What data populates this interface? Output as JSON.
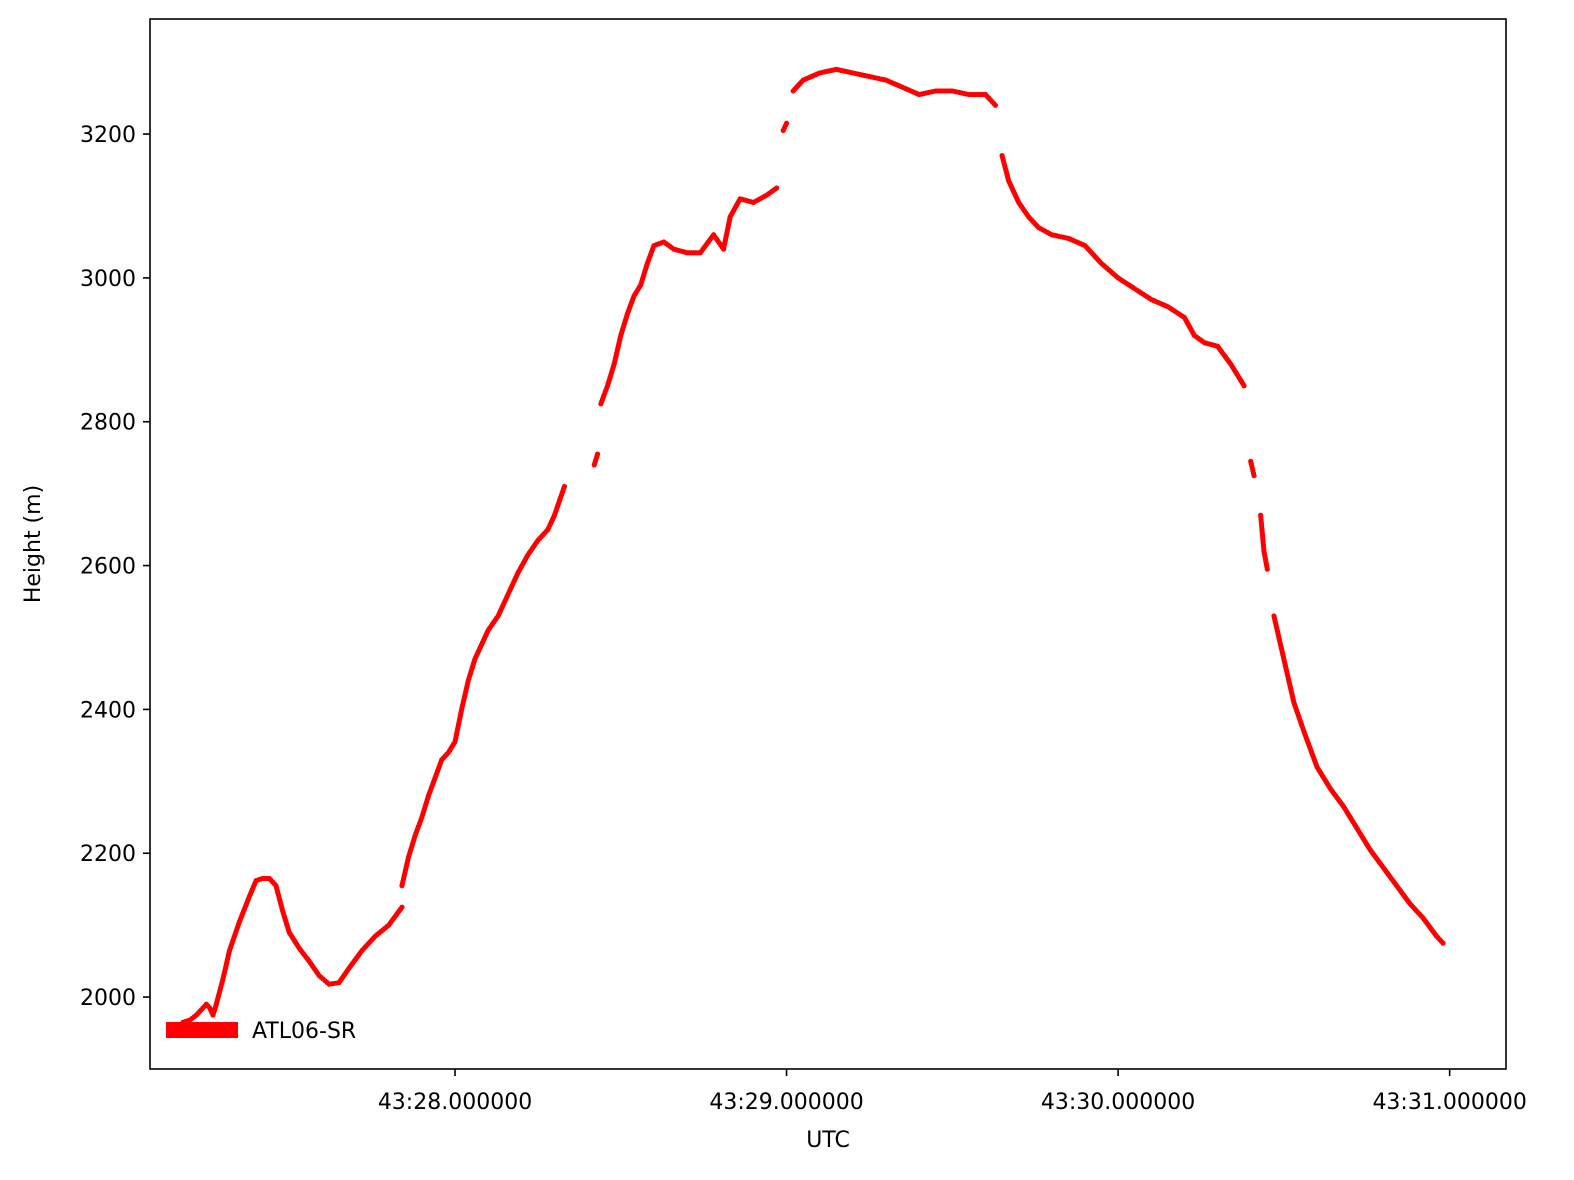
{
  "chart_data": {
    "type": "scatter",
    "title": "",
    "xlabel": "UTC",
    "ylabel": "Height (m)",
    "x_unit": "minutes:seconds UTC",
    "xlim": [
      "43:27.08",
      "43:31.17"
    ],
    "ylim": [
      1900,
      3360
    ],
    "x_ticks": [
      {
        "value": "43:28.000000",
        "label": "43:28.000000"
      },
      {
        "value": "43:29.000000",
        "label": "43:29.000000"
      },
      {
        "value": "43:30.000000",
        "label": "43:30.000000"
      },
      {
        "value": "43:31.000000",
        "label": "43:31.000000"
      }
    ],
    "y_ticks": [
      {
        "value": 2000,
        "label": "2000"
      },
      {
        "value": 2200,
        "label": "2200"
      },
      {
        "value": 2400,
        "label": "2400"
      },
      {
        "value": 2600,
        "label": "2600"
      },
      {
        "value": 2800,
        "label": "2800"
      },
      {
        "value": 3000,
        "label": "3000"
      },
      {
        "value": 3200,
        "label": "3200"
      }
    ],
    "grid": false,
    "legend_position": "lower-left",
    "series": [
      {
        "name": "ATL06-SR",
        "color": "#ff0000",
        "marker": "dot",
        "segments": [
          [
            [
              "43:27.18",
              1965
            ],
            [
              "43:27.20",
              1968
            ],
            [
              "43:27.22",
              1975
            ],
            [
              "43:27.24",
              1985
            ],
            [
              "43:27.25",
              1990
            ],
            [
              "43:27.26",
              1985
            ],
            [
              "43:27.27",
              1975
            ],
            [
              "43:27.28",
              1990
            ]
          ],
          [
            [
              "43:27.28",
              1990
            ],
            [
              "43:27.30",
              2025
            ],
            [
              "43:27.32",
              2065
            ],
            [
              "43:27.35",
              2105
            ],
            [
              "43:27.38",
              2140
            ],
            [
              "43:27.40",
              2162
            ],
            [
              "43:27.42",
              2165
            ],
            [
              "43:27.44",
              2165
            ],
            [
              "43:27.46",
              2155
            ],
            [
              "43:27.48",
              2120
            ],
            [
              "43:27.50",
              2090
            ],
            [
              "43:27.53",
              2068
            ],
            [
              "43:27.56",
              2050
            ],
            [
              "43:27.59",
              2030
            ],
            [
              "43:27.62",
              2018
            ],
            [
              "43:27.65",
              2020
            ],
            [
              "43:27.68",
              2040
            ],
            [
              "43:27.72",
              2065
            ],
            [
              "43:27.76",
              2085
            ],
            [
              "43:27.80",
              2100
            ],
            [
              "43:27.84",
              2125
            ]
          ],
          [
            [
              "43:27.84",
              2155
            ],
            [
              "43:27.86",
              2195
            ],
            [
              "43:27.88",
              2225
            ],
            [
              "43:27.90",
              2250
            ],
            [
              "43:27.92",
              2280
            ],
            [
              "43:27.94",
              2305
            ],
            [
              "43:27.96",
              2330
            ],
            [
              "43:27.98",
              2340
            ],
            [
              "43:28.00",
              2355
            ],
            [
              "43:28.02",
              2400
            ],
            [
              "43:28.04",
              2440
            ],
            [
              "43:28.06",
              2470
            ],
            [
              "43:28.08",
              2490
            ],
            [
              "43:28.10",
              2510
            ],
            [
              "43:28.13",
              2530
            ],
            [
              "43:28.16",
              2560
            ],
            [
              "43:28.19",
              2590
            ],
            [
              "43:28.22",
              2615
            ],
            [
              "43:28.25",
              2635
            ],
            [
              "43:28.28",
              2650
            ],
            [
              "43:28.30",
              2670
            ],
            [
              "43:28.33",
              2710
            ]
          ],
          [
            [
              "43:28.42",
              2740
            ],
            [
              "43:28.43",
              2755
            ]
          ],
          [
            [
              "43:28.44",
              2825
            ],
            [
              "43:28.46",
              2850
            ],
            [
              "43:28.48",
              2880
            ],
            [
              "43:28.50",
              2920
            ],
            [
              "43:28.52",
              2950
            ],
            [
              "43:28.54",
              2975
            ],
            [
              "43:28.56",
              2990
            ],
            [
              "43:28.58",
              3020
            ],
            [
              "43:28.60",
              3045
            ],
            [
              "43:28.63",
              3050
            ],
            [
              "43:28.66",
              3040
            ],
            [
              "43:28.70",
              3035
            ],
            [
              "43:28.74",
              3035
            ],
            [
              "43:28.78",
              3060
            ],
            [
              "43:28.81",
              3040
            ],
            [
              "43:28.83",
              3085
            ],
            [
              "43:28.86",
              3110
            ],
            [
              "43:28.90",
              3105
            ],
            [
              "43:28.94",
              3115
            ],
            [
              "43:28.97",
              3125
            ]
          ],
          [
            [
              "43:28.99",
              3205
            ],
            [
              "43:29.00",
              3215
            ]
          ],
          [
            [
              "43:29.02",
              3260
            ],
            [
              "43:29.05",
              3275
            ],
            [
              "43:29.10",
              3285
            ],
            [
              "43:29.15",
              3290
            ],
            [
              "43:29.20",
              3285
            ],
            [
              "43:29.25",
              3280
            ],
            [
              "43:29.30",
              3275
            ],
            [
              "43:29.35",
              3265
            ],
            [
              "43:29.40",
              3255
            ],
            [
              "43:29.45",
              3260
            ],
            [
              "43:29.50",
              3260
            ],
            [
              "43:29.55",
              3255
            ],
            [
              "43:29.60",
              3255
            ],
            [
              "43:29.63",
              3240
            ]
          ],
          [
            [
              "43:29.65",
              3170
            ],
            [
              "43:29.67",
              3135
            ],
            [
              "43:29.70",
              3105
            ],
            [
              "43:29.73",
              3085
            ],
            [
              "43:29.76",
              3070
            ],
            [
              "43:29.80",
              3060
            ],
            [
              "43:29.85",
              3055
            ],
            [
              "43:29.90",
              3045
            ],
            [
              "43:29.95",
              3020
            ],
            [
              "43:30.00",
              3000
            ],
            [
              "43:30.05",
              2985
            ],
            [
              "43:30.10",
              2970
            ],
            [
              "43:30.15",
              2960
            ],
            [
              "43:30.20",
              2945
            ],
            [
              "43:30.23",
              2920
            ],
            [
              "43:30.26",
              2910
            ],
            [
              "43:30.30",
              2905
            ],
            [
              "43:30.34",
              2880
            ],
            [
              "43:30.38",
              2850
            ]
          ],
          [
            [
              "43:30.40",
              2745
            ],
            [
              "43:30.41",
              2725
            ]
          ],
          [
            [
              "43:30.43",
              2670
            ],
            [
              "43:30.44",
              2620
            ],
            [
              "43:30.45",
              2595
            ]
          ],
          [
            [
              "43:30.47",
              2530
            ],
            [
              "43:30.50",
              2470
            ],
            [
              "43:30.53",
              2410
            ],
            [
              "43:30.56",
              2370
            ],
            [
              "43:30.60",
              2320
            ],
            [
              "43:30.64",
              2290
            ],
            [
              "43:30.68",
              2265
            ],
            [
              "43:30.72",
              2235
            ],
            [
              "43:30.76",
              2205
            ],
            [
              "43:30.80",
              2180
            ],
            [
              "43:30.84",
              2155
            ],
            [
              "43:30.88",
              2130
            ],
            [
              "43:30.92",
              2110
            ],
            [
              "43:30.96",
              2085
            ],
            [
              "43:30.98",
              2075
            ]
          ]
        ]
      }
    ]
  }
}
